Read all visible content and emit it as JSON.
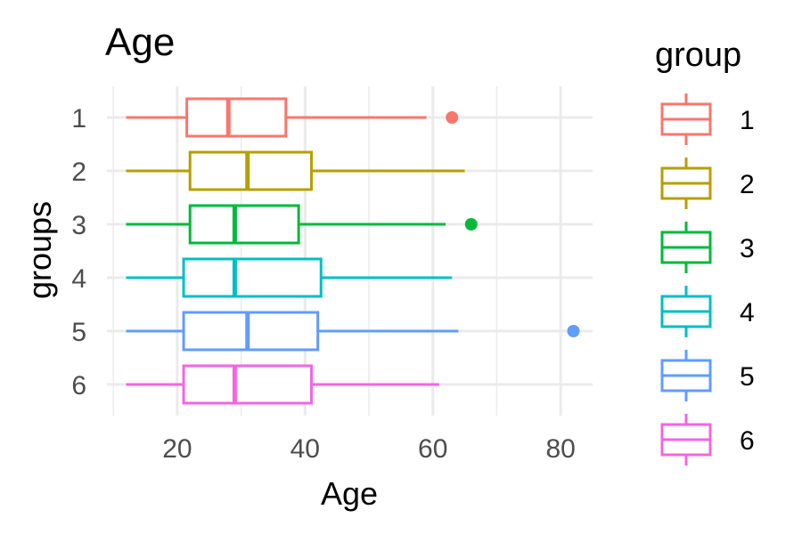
{
  "chart_data": {
    "type": "boxplot",
    "orientation": "horizontal",
    "title": "Age",
    "xlabel": "Age",
    "ylabel": "groups",
    "xlim": [
      9,
      85
    ],
    "x_ticks": [
      20,
      40,
      60,
      80
    ],
    "x_tick_labels": [
      "20",
      "40",
      "60",
      "80"
    ],
    "grid": true,
    "legend": {
      "title": "group",
      "position": "right"
    },
    "series": [
      {
        "name": "1",
        "color": "#F8766D",
        "min": 12,
        "q1": 21.5,
        "median": 28,
        "q3": 37,
        "max": 59,
        "outliers": [
          63
        ]
      },
      {
        "name": "2",
        "color": "#B79F00",
        "min": 12,
        "q1": 22,
        "median": 31,
        "q3": 41,
        "max": 65,
        "outliers": []
      },
      {
        "name": "3",
        "color": "#00BA38",
        "min": 12,
        "q1": 22,
        "median": 29,
        "q3": 39,
        "max": 62,
        "outliers": [
          66
        ]
      },
      {
        "name": "4",
        "color": "#00BFC4",
        "min": 12,
        "q1": 21,
        "median": 29,
        "q3": 42.5,
        "max": 63,
        "outliers": []
      },
      {
        "name": "5",
        "color": "#619CFF",
        "min": 12,
        "q1": 21,
        "median": 31,
        "q3": 42,
        "max": 64,
        "outliers": [
          82
        ]
      },
      {
        "name": "6",
        "color": "#F564E3",
        "min": 12,
        "q1": 21,
        "median": 29,
        "q3": 41,
        "max": 61,
        "outliers": []
      }
    ]
  }
}
